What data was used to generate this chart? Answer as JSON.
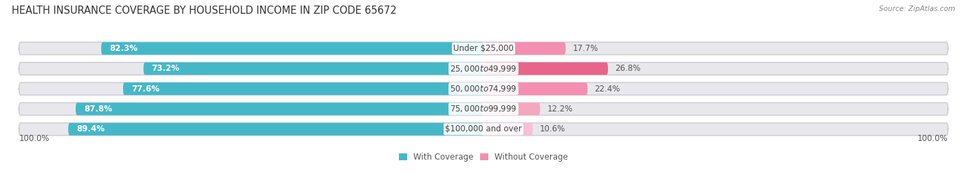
{
  "title": "HEALTH INSURANCE COVERAGE BY HOUSEHOLD INCOME IN ZIP CODE 65672",
  "source": "Source: ZipAtlas.com",
  "categories": [
    "Under $25,000",
    "$25,000 to $49,999",
    "$50,000 to $74,999",
    "$75,000 to $99,999",
    "$100,000 and over"
  ],
  "with_coverage": [
    82.3,
    73.2,
    77.6,
    87.8,
    89.4
  ],
  "without_coverage": [
    17.7,
    26.8,
    22.4,
    12.2,
    10.6
  ],
  "color_with": "#45b8c8",
  "color_without_0": "#f48fb1",
  "color_without_1": "#e8648a",
  "color_without_2": "#f48fb1",
  "color_without_3": "#f7b8cc",
  "color_without_4": "#f7b8cc",
  "colors_without": [
    "#f48fb1",
    "#e8648a",
    "#f48fb1",
    "#f4a8c0",
    "#f7c0d4"
  ],
  "bg_color": "#ffffff",
  "bar_bg_color": "#e8e8ec",
  "title_fontsize": 10.5,
  "label_fontsize": 8.5,
  "legend_fontsize": 8.5,
  "bar_height": 0.62,
  "left_label": "100.0%",
  "right_label": "100.0%"
}
